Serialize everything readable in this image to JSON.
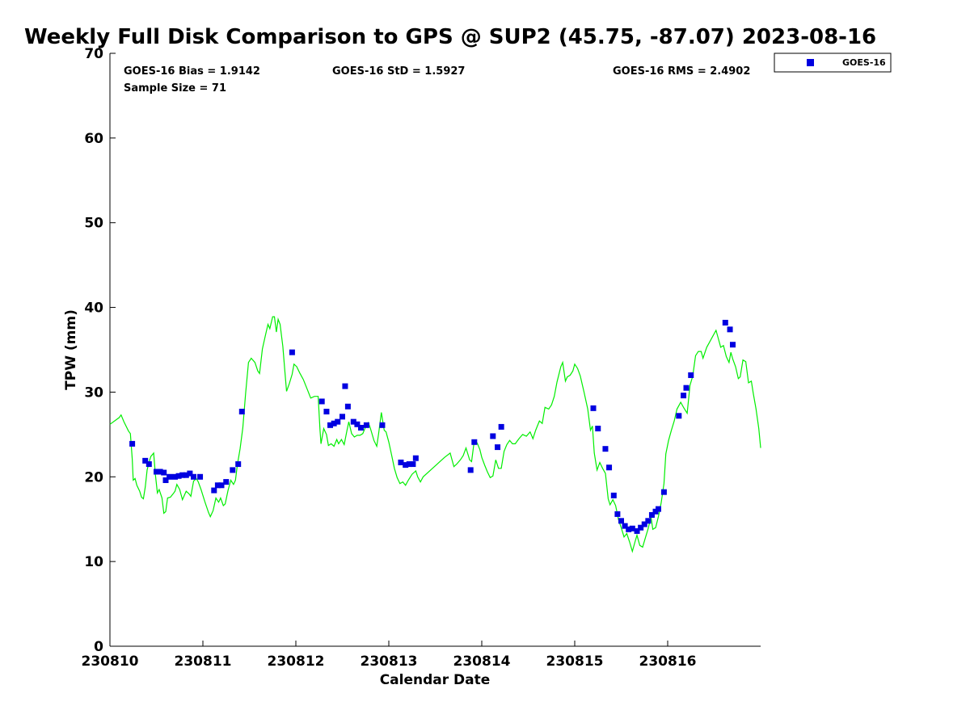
{
  "chart_data": {
    "type": "scatter",
    "title": "Weekly Full Disk Comparison to GPS @ SUP2 (45.75, -87.07) 2023-08-16",
    "xlabel": "Calendar Date",
    "ylabel": "TPW (mm)",
    "xlim": [
      0,
      7
    ],
    "ylim": [
      0,
      70
    ],
    "x_tick_values": [
      0,
      1,
      2,
      3,
      4,
      5,
      6
    ],
    "x_tick_labels": [
      "230810",
      "230811",
      "230812",
      "230813",
      "230814",
      "230815",
      "230816"
    ],
    "y_ticks": [
      0,
      10,
      20,
      30,
      40,
      50,
      60,
      70
    ],
    "grid": false,
    "legend_position": "top-right",
    "stats": {
      "bias": "GOES-16 Bias = 1.9142",
      "std": "GOES-16 StD = 1.5927",
      "rms": "GOES-16 RMS = 2.4902",
      "sample": "Sample Size = 71"
    },
    "series": [
      {
        "name": "GOES-16",
        "kind": "scatter",
        "marker": "square",
        "color": "#0000e0",
        "points": [
          [
            0.24,
            23.9
          ],
          [
            0.38,
            21.9
          ],
          [
            0.42,
            21.5
          ],
          [
            0.5,
            20.6
          ],
          [
            0.54,
            20.6
          ],
          [
            0.58,
            20.5
          ],
          [
            0.6,
            19.6
          ],
          [
            0.64,
            20.0
          ],
          [
            0.7,
            20.0
          ],
          [
            0.74,
            20.1
          ],
          [
            0.78,
            20.2
          ],
          [
            0.82,
            20.2
          ],
          [
            0.86,
            20.4
          ],
          [
            0.9,
            20.0
          ],
          [
            0.97,
            20.0
          ],
          [
            1.12,
            18.4
          ],
          [
            1.16,
            19.0
          ],
          [
            1.2,
            19.0
          ],
          [
            1.25,
            19.4
          ],
          [
            1.32,
            20.8
          ],
          [
            1.38,
            21.5
          ],
          [
            1.42,
            27.7
          ],
          [
            1.96,
            34.7
          ],
          [
            2.28,
            28.9
          ],
          [
            2.33,
            27.7
          ],
          [
            2.37,
            26.1
          ],
          [
            2.41,
            26.3
          ],
          [
            2.45,
            26.5
          ],
          [
            2.5,
            27.1
          ],
          [
            2.53,
            30.7
          ],
          [
            2.56,
            28.3
          ],
          [
            2.62,
            26.5
          ],
          [
            2.66,
            26.2
          ],
          [
            2.7,
            25.8
          ],
          [
            2.76,
            26.1
          ],
          [
            2.93,
            26.1
          ],
          [
            3.13,
            21.7
          ],
          [
            3.18,
            21.4
          ],
          [
            3.22,
            21.5
          ],
          [
            3.26,
            21.5
          ],
          [
            3.29,
            22.2
          ],
          [
            3.88,
            20.8
          ],
          [
            3.92,
            24.1
          ],
          [
            4.12,
            24.8
          ],
          [
            4.17,
            23.5
          ],
          [
            4.21,
            25.9
          ],
          [
            5.2,
            28.1
          ],
          [
            5.25,
            25.7
          ],
          [
            5.33,
            23.3
          ],
          [
            5.37,
            21.1
          ],
          [
            5.42,
            17.8
          ],
          [
            5.46,
            15.6
          ],
          [
            5.5,
            14.8
          ],
          [
            5.54,
            14.2
          ],
          [
            5.58,
            13.8
          ],
          [
            5.62,
            13.9
          ],
          [
            5.67,
            13.6
          ],
          [
            5.71,
            14.0
          ],
          [
            5.75,
            14.4
          ],
          [
            5.79,
            14.8
          ],
          [
            5.83,
            15.5
          ],
          [
            5.87,
            15.9
          ],
          [
            5.9,
            16.2
          ],
          [
            5.96,
            18.2
          ],
          [
            6.12,
            27.2
          ],
          [
            6.17,
            29.6
          ],
          [
            6.2,
            30.5
          ],
          [
            6.25,
            32.0
          ],
          [
            6.62,
            38.2
          ],
          [
            6.67,
            37.4
          ],
          [
            6.7,
            35.6
          ]
        ]
      },
      {
        "kind": "line",
        "color": "#00ee00",
        "points": [
          [
            0.0,
            26.2
          ],
          [
            0.1,
            27.0
          ],
          [
            0.12,
            27.3
          ],
          [
            0.15,
            26.5
          ],
          [
            0.2,
            25.4
          ],
          [
            0.22,
            25.1
          ],
          [
            0.24,
            22.1
          ],
          [
            0.25,
            19.6
          ],
          [
            0.27,
            19.8
          ],
          [
            0.29,
            19.0
          ],
          [
            0.32,
            18.3
          ],
          [
            0.34,
            17.6
          ],
          [
            0.36,
            17.4
          ],
          [
            0.38,
            18.8
          ],
          [
            0.4,
            20.8
          ],
          [
            0.42,
            21.7
          ],
          [
            0.44,
            22.4
          ],
          [
            0.47,
            22.8
          ],
          [
            0.49,
            20.2
          ],
          [
            0.51,
            18.1
          ],
          [
            0.53,
            18.5
          ],
          [
            0.56,
            17.5
          ],
          [
            0.58,
            15.7
          ],
          [
            0.6,
            15.9
          ],
          [
            0.62,
            17.5
          ],
          [
            0.65,
            17.6
          ],
          [
            0.68,
            18.0
          ],
          [
            0.7,
            18.3
          ],
          [
            0.72,
            19.1
          ],
          [
            0.75,
            18.5
          ],
          [
            0.78,
            17.3
          ],
          [
            0.8,
            17.8
          ],
          [
            0.82,
            18.3
          ],
          [
            0.85,
            18.0
          ],
          [
            0.87,
            17.7
          ],
          [
            0.9,
            19.5
          ],
          [
            0.93,
            19.8
          ],
          [
            0.95,
            19.4
          ],
          [
            0.98,
            18.5
          ],
          [
            1.02,
            17.1
          ],
          [
            1.06,
            15.8
          ],
          [
            1.08,
            15.3
          ],
          [
            1.11,
            16.0
          ],
          [
            1.14,
            17.5
          ],
          [
            1.17,
            17.0
          ],
          [
            1.19,
            17.5
          ],
          [
            1.22,
            16.6
          ],
          [
            1.24,
            16.8
          ],
          [
            1.27,
            18.4
          ],
          [
            1.3,
            19.6
          ],
          [
            1.33,
            19.1
          ],
          [
            1.35,
            19.6
          ],
          [
            1.37,
            21.4
          ],
          [
            1.4,
            23.3
          ],
          [
            1.43,
            25.8
          ],
          [
            1.46,
            29.9
          ],
          [
            1.49,
            33.5
          ],
          [
            1.52,
            34.0
          ],
          [
            1.56,
            33.5
          ],
          [
            1.59,
            32.5
          ],
          [
            1.61,
            32.2
          ],
          [
            1.64,
            35.1
          ],
          [
            1.67,
            36.6
          ],
          [
            1.7,
            38.0
          ],
          [
            1.72,
            37.5
          ],
          [
            1.75,
            38.9
          ],
          [
            1.77,
            38.9
          ],
          [
            1.79,
            37.1
          ],
          [
            1.81,
            38.6
          ],
          [
            1.83,
            38.0
          ],
          [
            1.86,
            35.4
          ],
          [
            1.88,
            32.7
          ],
          [
            1.9,
            30.1
          ],
          [
            1.93,
            31.0
          ],
          [
            1.96,
            32.1
          ],
          [
            1.98,
            33.3
          ],
          [
            2.01,
            33.0
          ],
          [
            2.04,
            32.3
          ],
          [
            2.08,
            31.5
          ],
          [
            2.12,
            30.4
          ],
          [
            2.16,
            29.3
          ],
          [
            2.2,
            29.5
          ],
          [
            2.24,
            29.5
          ],
          [
            2.26,
            25.5
          ],
          [
            2.27,
            23.9
          ],
          [
            2.3,
            25.7
          ],
          [
            2.33,
            25.0
          ],
          [
            2.35,
            23.7
          ],
          [
            2.38,
            23.9
          ],
          [
            2.41,
            23.6
          ],
          [
            2.44,
            24.4
          ],
          [
            2.46,
            23.9
          ],
          [
            2.49,
            24.4
          ],
          [
            2.52,
            23.8
          ],
          [
            2.55,
            25.5
          ],
          [
            2.57,
            26.5
          ],
          [
            2.6,
            25.1
          ],
          [
            2.63,
            24.7
          ],
          [
            2.66,
            24.9
          ],
          [
            2.69,
            24.9
          ],
          [
            2.72,
            25.1
          ],
          [
            2.75,
            25.9
          ],
          [
            2.78,
            26.4
          ],
          [
            2.8,
            25.8
          ],
          [
            2.84,
            24.3
          ],
          [
            2.87,
            23.6
          ],
          [
            2.89,
            25.1
          ],
          [
            2.92,
            27.6
          ],
          [
            2.95,
            25.5
          ],
          [
            2.97,
            25.3
          ],
          [
            3.0,
            24.1
          ],
          [
            3.03,
            22.6
          ],
          [
            3.06,
            21.0
          ],
          [
            3.09,
            19.9
          ],
          [
            3.12,
            19.2
          ],
          [
            3.15,
            19.4
          ],
          [
            3.18,
            19.0
          ],
          [
            3.21,
            19.6
          ],
          [
            3.25,
            20.3
          ],
          [
            3.29,
            20.7
          ],
          [
            3.31,
            20.0
          ],
          [
            3.34,
            19.4
          ],
          [
            3.37,
            20.0
          ],
          [
            3.44,
            20.7
          ],
          [
            3.52,
            21.5
          ],
          [
            3.6,
            22.3
          ],
          [
            3.66,
            22.8
          ],
          [
            3.7,
            21.2
          ],
          [
            3.73,
            21.5
          ],
          [
            3.77,
            22.0
          ],
          [
            3.8,
            22.5
          ],
          [
            3.83,
            23.4
          ],
          [
            3.87,
            22.0
          ],
          [
            3.89,
            21.8
          ],
          [
            3.92,
            24.3
          ],
          [
            3.95,
            24.0
          ],
          [
            3.98,
            23.2
          ],
          [
            4.0,
            22.3
          ],
          [
            4.03,
            21.4
          ],
          [
            4.06,
            20.6
          ],
          [
            4.09,
            19.9
          ],
          [
            4.12,
            20.1
          ],
          [
            4.15,
            22.0
          ],
          [
            4.18,
            21.0
          ],
          [
            4.21,
            21.0
          ],
          [
            4.24,
            23.0
          ],
          [
            4.27,
            23.8
          ],
          [
            4.3,
            24.3
          ],
          [
            4.33,
            23.9
          ],
          [
            4.36,
            23.9
          ],
          [
            4.4,
            24.5
          ],
          [
            4.44,
            25.0
          ],
          [
            4.48,
            24.8
          ],
          [
            4.52,
            25.3
          ],
          [
            4.55,
            24.5
          ],
          [
            4.58,
            25.5
          ],
          [
            4.62,
            26.6
          ],
          [
            4.65,
            26.3
          ],
          [
            4.68,
            28.2
          ],
          [
            4.72,
            28.0
          ],
          [
            4.75,
            28.5
          ],
          [
            4.78,
            29.5
          ],
          [
            4.81,
            31.2
          ],
          [
            4.85,
            33.0
          ],
          [
            4.87,
            33.5
          ],
          [
            4.9,
            31.3
          ],
          [
            4.92,
            31.8
          ],
          [
            4.95,
            32.0
          ],
          [
            4.98,
            32.5
          ],
          [
            5.0,
            33.3
          ],
          [
            5.03,
            32.8
          ],
          [
            5.06,
            31.9
          ],
          [
            5.1,
            30.0
          ],
          [
            5.14,
            28.0
          ],
          [
            5.17,
            25.5
          ],
          [
            5.19,
            26.0
          ],
          [
            5.21,
            22.8
          ],
          [
            5.24,
            20.8
          ],
          [
            5.27,
            21.7
          ],
          [
            5.3,
            21.0
          ],
          [
            5.33,
            20.4
          ],
          [
            5.36,
            17.4
          ],
          [
            5.38,
            16.7
          ],
          [
            5.41,
            17.3
          ],
          [
            5.44,
            16.6
          ],
          [
            5.47,
            15.0
          ],
          [
            5.5,
            14.0
          ],
          [
            5.53,
            12.9
          ],
          [
            5.56,
            13.3
          ],
          [
            5.59,
            12.3
          ],
          [
            5.62,
            11.2
          ],
          [
            5.65,
            12.4
          ],
          [
            5.67,
            13.1
          ],
          [
            5.7,
            11.9
          ],
          [
            5.73,
            11.7
          ],
          [
            5.76,
            12.8
          ],
          [
            5.79,
            13.9
          ],
          [
            5.82,
            15.3
          ],
          [
            5.84,
            13.8
          ],
          [
            5.87,
            14.0
          ],
          [
            5.9,
            15.3
          ],
          [
            5.93,
            16.9
          ],
          [
            5.96,
            19.2
          ],
          [
            5.98,
            22.7
          ],
          [
            6.01,
            24.3
          ],
          [
            6.04,
            25.5
          ],
          [
            6.07,
            26.6
          ],
          [
            6.1,
            28.0
          ],
          [
            6.14,
            28.8
          ],
          [
            6.17,
            28.2
          ],
          [
            6.21,
            27.5
          ],
          [
            6.24,
            30.8
          ],
          [
            6.27,
            31.9
          ],
          [
            6.3,
            34.3
          ],
          [
            6.33,
            34.8
          ],
          [
            6.36,
            34.8
          ],
          [
            6.38,
            34.0
          ],
          [
            6.42,
            35.3
          ],
          [
            6.45,
            35.9
          ],
          [
            6.48,
            36.5
          ],
          [
            6.52,
            37.3
          ],
          [
            6.55,
            36.1
          ],
          [
            6.57,
            35.3
          ],
          [
            6.6,
            35.5
          ],
          [
            6.63,
            34.2
          ],
          [
            6.66,
            33.5
          ],
          [
            6.68,
            34.7
          ],
          [
            6.7,
            33.9
          ],
          [
            6.73,
            33.0
          ],
          [
            6.76,
            31.6
          ],
          [
            6.78,
            31.8
          ],
          [
            6.81,
            33.8
          ],
          [
            6.84,
            33.6
          ],
          [
            6.87,
            31.1
          ],
          [
            6.9,
            31.3
          ],
          [
            6.92,
            29.9
          ],
          [
            6.95,
            28.0
          ],
          [
            6.98,
            25.7
          ],
          [
            7.0,
            23.4
          ]
        ]
      }
    ]
  }
}
